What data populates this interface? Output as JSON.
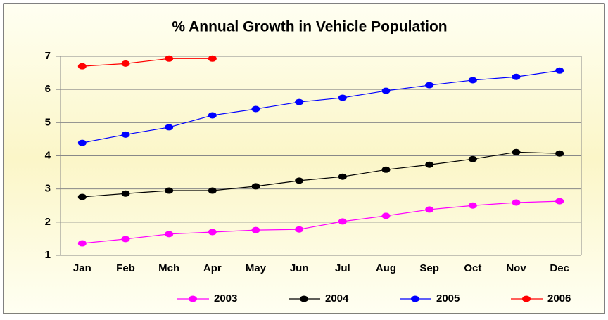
{
  "chart_data": {
    "type": "line",
    "title": "% Annual Growth in Vehicle Population",
    "categories": [
      "Jan",
      "Feb",
      "Mch",
      "Apr",
      "May",
      "Jun",
      "Jul",
      "Aug",
      "Sep",
      "Oct",
      "Nov",
      "Dec"
    ],
    "series": [
      {
        "name": "2003",
        "color": "#ff00ff",
        "values": [
          1.36,
          1.49,
          1.64,
          1.7,
          1.76,
          1.78,
          2.02,
          2.19,
          2.38,
          2.5,
          2.59,
          2.63
        ]
      },
      {
        "name": "2004",
        "color": "#000000",
        "values": [
          2.76,
          2.86,
          2.95,
          2.95,
          3.08,
          3.25,
          3.37,
          3.58,
          3.73,
          3.9,
          4.11,
          4.07
        ]
      },
      {
        "name": "2005",
        "color": "#0000ff",
        "values": [
          4.39,
          4.64,
          4.86,
          5.22,
          5.41,
          5.62,
          5.75,
          5.96,
          6.13,
          6.28,
          6.38,
          6.57
        ]
      },
      {
        "name": "2006",
        "color": "#ff0000",
        "values": [
          6.7,
          6.78,
          6.93,
          6.93,
          null,
          null,
          null,
          null,
          null,
          null,
          null,
          null
        ]
      }
    ],
    "ylim": [
      1,
      7
    ],
    "yticks": [
      1,
      2,
      3,
      4,
      5,
      6,
      7
    ],
    "grid": true,
    "legend": "bottom"
  }
}
